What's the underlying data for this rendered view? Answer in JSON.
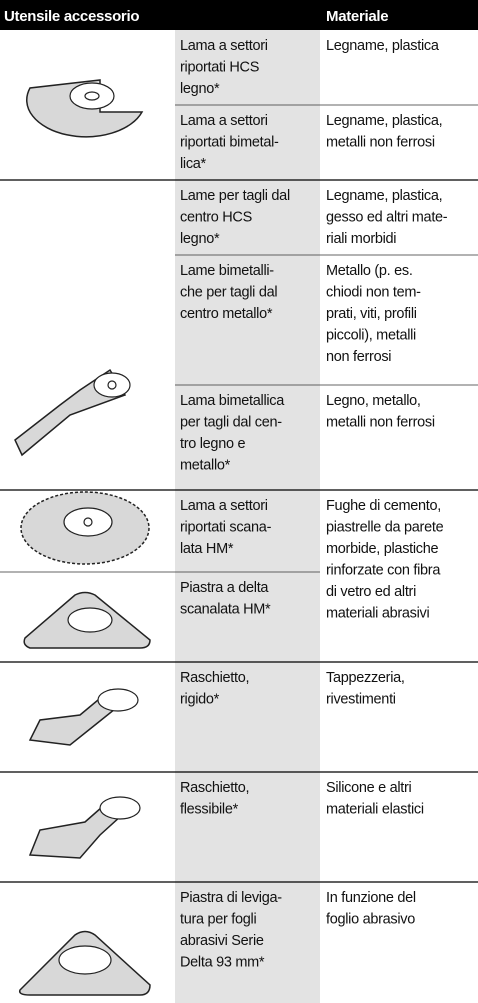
{
  "header": {
    "tool": "Utensile accessorio",
    "material": "Materiale"
  },
  "groups": [
    {
      "items": [
        {
          "name": [
            "Lama a settori",
            "riportati HCS",
            "legno*"
          ],
          "material": [
            "Legname, plastica"
          ]
        },
        {
          "name": [
            "Lama a settori",
            "riportati bimetal-",
            "lica*"
          ],
          "material": [
            "Legname, plastica,",
            "metalli non ferrosi"
          ]
        }
      ]
    },
    {
      "items": [
        {
          "name": [
            "Lame per tagli dal",
            "centro HCS",
            "legno*"
          ],
          "material": [
            "Legname, plastica,",
            "gesso ed altri mate-",
            "riali morbidi"
          ]
        },
        {
          "name": [
            "Lame bimetalli-",
            "che per tagli dal",
            "centro metallo*"
          ],
          "material": [
            "Metallo (p. es.",
            "chiodi non tem-",
            "prati, viti, profili",
            "piccoli), metalli",
            "non ferrosi"
          ]
        },
        {
          "name": [
            "Lama bimetallica",
            "per tagli dal cen-",
            "tro legno e",
            "metallo*"
          ],
          "material": [
            "Legno, metallo,",
            "metalli non ferrosi"
          ]
        }
      ]
    },
    {
      "items": [
        {
          "name": [
            "Lama a settori",
            "riportati scana-",
            "lata HM*"
          ]
        },
        {
          "name": [
            "Piastra a delta",
            "scanalata HM*"
          ]
        }
      ],
      "material": [
        "Fughe di cemento,",
        "piastrelle da parete",
        "morbide, plastiche",
        "rinforzate con fibra",
        "di vetro ed altri",
        "materiali abrasivi"
      ]
    },
    {
      "items": [
        {
          "name": [
            "Raschietto,",
            "rigido*"
          ],
          "material": [
            "Tappezzeria,",
            "rivestimenti"
          ]
        }
      ]
    },
    {
      "items": [
        {
          "name": [
            "Raschietto,",
            "flessibile*"
          ],
          "material": [
            "Silicone e altri",
            "materiali elastici"
          ]
        }
      ]
    },
    {
      "items": [
        {
          "name": [
            "Piastra di leviga-",
            "tura per fogli",
            "abrasivi Serie",
            "Delta 93 mm*"
          ],
          "material": [
            "In funzione del",
            "foglio abrasivo"
          ]
        }
      ]
    }
  ]
}
